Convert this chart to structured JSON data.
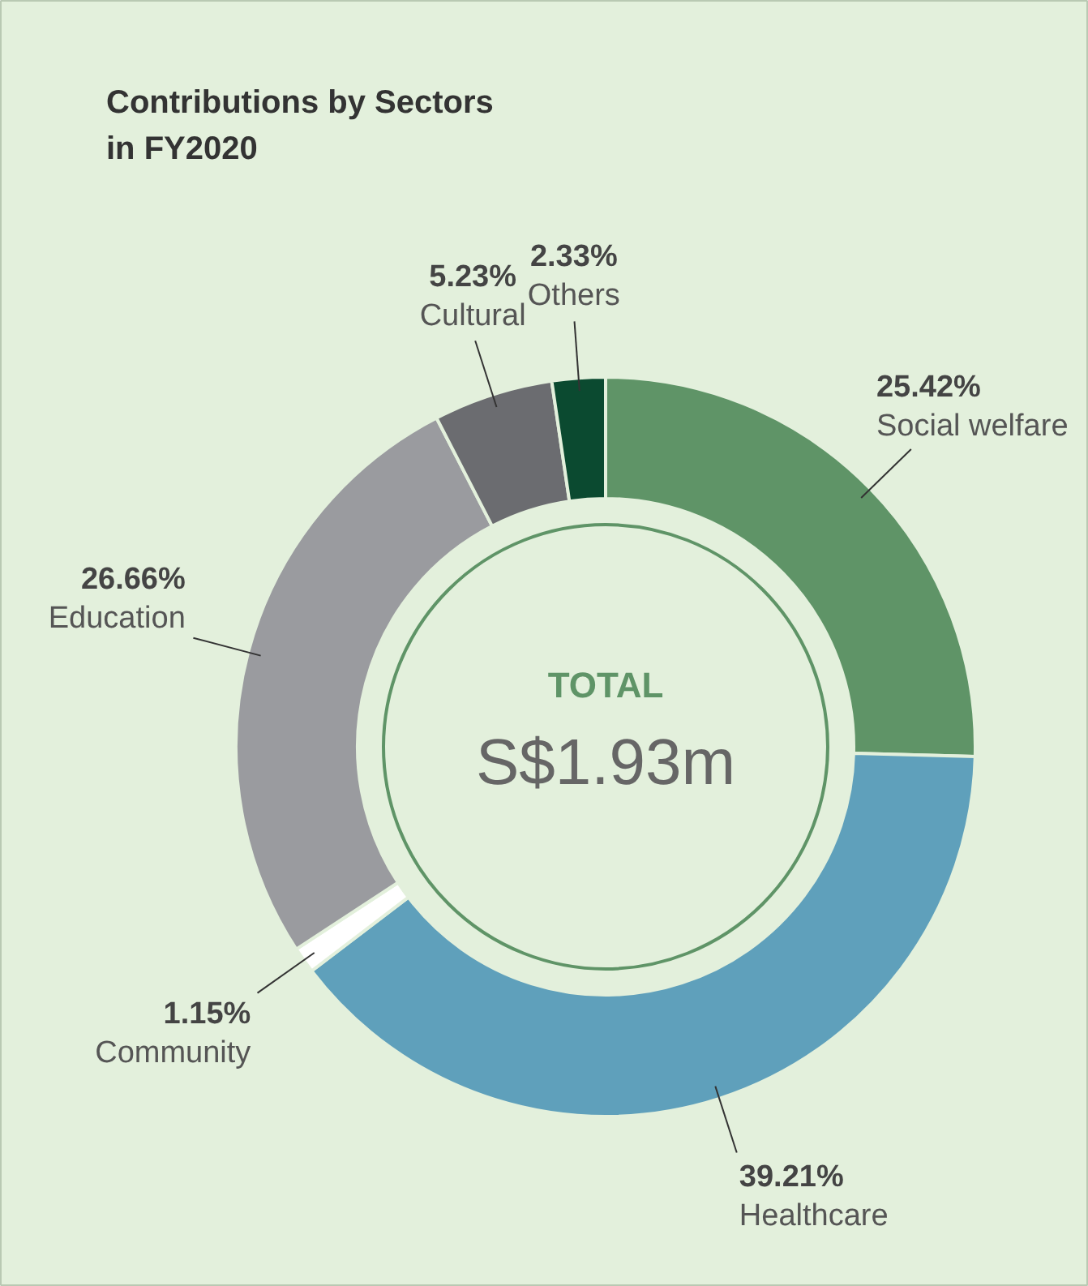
{
  "chart_data": {
    "type": "donut",
    "title": "Contributions by Sectors\nin FY2020",
    "categories": [
      "Social welfare",
      "Healthcare",
      "Community",
      "Education",
      "Cultural",
      "Others"
    ],
    "values": [
      25.42,
      39.21,
      1.15,
      26.66,
      5.23,
      2.33
    ],
    "colors": [
      "#5f9467",
      "#5fa0bb",
      "#ffffff",
      "#9a9b9f",
      "#6b6c70",
      "#0b4a30"
    ],
    "value_labels": [
      "25.42%",
      "39.21%",
      "1.15%",
      "26.66%",
      "5.23%",
      "2.33%"
    ],
    "annotations": [
      "TOTAL",
      "S$1.93m"
    ]
  }
}
